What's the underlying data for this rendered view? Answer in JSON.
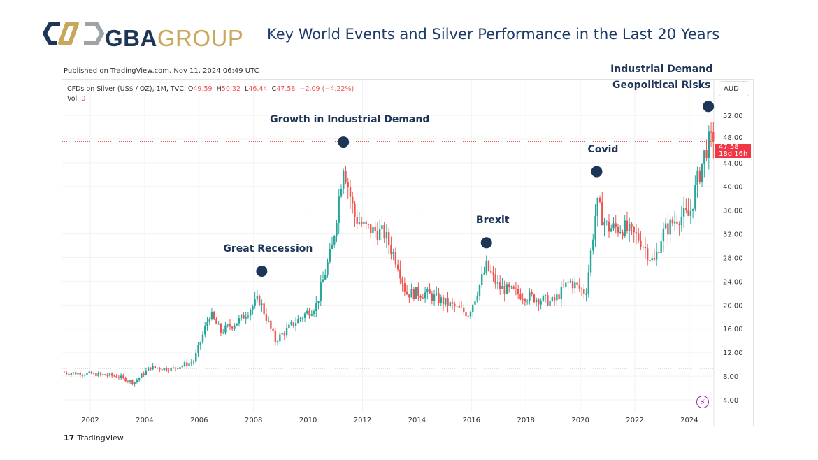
{
  "header": {
    "logo_brand": "GBA",
    "logo_group": "GROUP",
    "title": "Key World Events and Silver Performance in the Last 20 Years"
  },
  "published": "Published on TradingView.com, Nov 11, 2024 06:49 UTC",
  "legend": {
    "symbol": "CFDs on Silver (US$ / OZ), 1M, TVC",
    "o_label": "O",
    "o": "49.59",
    "h_label": "H",
    "h": "50.32",
    "l_label": "L",
    "l": "46.44",
    "c_label": "C",
    "c": "47.58",
    "change": "−2.09 (−4.22%)",
    "vol_label": "Vol",
    "vol": "0"
  },
  "currency": "AUD",
  "price_tag": {
    "price": "47.58",
    "countdown": "18d 16h"
  },
  "footer": {
    "brand": "TradingView",
    "brand_icon": "tradingview-logo-icon"
  },
  "colors": {
    "up": "#26a69a",
    "down": "#ef5350",
    "marker": "#1d3557",
    "price_tag": "#f23645"
  },
  "chart_data": {
    "type": "candlestick",
    "title": "Key World Events and Silver Performance in the Last 20 Years",
    "interval": "1M",
    "xlim": [
      2001.05,
      2024.9
    ],
    "ylim": [
      2.5,
      55.5
    ],
    "x_ticks": [
      "2002",
      "2004",
      "2006",
      "2008",
      "2010",
      "2012",
      "2014",
      "2016",
      "2018",
      "2020",
      "2022",
      "2024"
    ],
    "y_ticks": [
      "52.00",
      "48.00",
      "44.00",
      "40.00",
      "36.00",
      "32.00",
      "28.00",
      "24.00",
      "20.00",
      "16.00",
      "12.00",
      "8.00",
      "4.00"
    ],
    "price_anchors": [
      [
        2001.05,
        8.6
      ],
      [
        2002,
        8.4
      ],
      [
        2003,
        8.0
      ],
      [
        2003.6,
        6.9
      ],
      [
        2004.2,
        9.5
      ],
      [
        2005,
        9.2
      ],
      [
        2005.8,
        10.5
      ],
      [
        2006.4,
        18.5
      ],
      [
        2006.8,
        15.5
      ],
      [
        2007.5,
        17.5
      ],
      [
        2008.2,
        21
      ],
      [
        2008.8,
        14
      ],
      [
        2009.5,
        17
      ],
      [
        2010.3,
        20
      ],
      [
        2010.9,
        30
      ],
      [
        2011.3,
        44
      ],
      [
        2011.7,
        35
      ],
      [
        2012.1,
        33
      ],
      [
        2012.8,
        32
      ],
      [
        2013.3,
        27
      ],
      [
        2013.6,
        22
      ],
      [
        2014.3,
        22
      ],
      [
        2015,
        20.5
      ],
      [
        2015.9,
        18.5
      ],
      [
        2016.55,
        26.5
      ],
      [
        2017,
        23
      ],
      [
        2018,
        21.5
      ],
      [
        2019,
        20.5
      ],
      [
        2019.6,
        24
      ],
      [
        2020.2,
        22
      ],
      [
        2020.6,
        37
      ],
      [
        2021,
        33
      ],
      [
        2021.6,
        33
      ],
      [
        2022.2,
        31
      ],
      [
        2022.7,
        27
      ],
      [
        2023,
        32
      ],
      [
        2023.6,
        35
      ],
      [
        2024,
        35
      ],
      [
        2024.3,
        41
      ],
      [
        2024.65,
        47
      ],
      [
        2024.85,
        47.58
      ]
    ],
    "last_price": 47.58,
    "annotations": [
      {
        "label": "Great Recession",
        "year": 2008.3,
        "price": 25.7
      },
      {
        "label": "Growth in Industrial Demand",
        "year": 2011.3,
        "price": 47.5
      },
      {
        "label": "Brexit",
        "year": 2016.55,
        "price": 30.5
      },
      {
        "label": "Covid",
        "year": 2020.6,
        "price": 42.5
      },
      {
        "label": "Industrial Demand",
        "label2": "Geopolitical Risks",
        "year": 2024.7,
        "price": 53.5
      }
    ]
  }
}
